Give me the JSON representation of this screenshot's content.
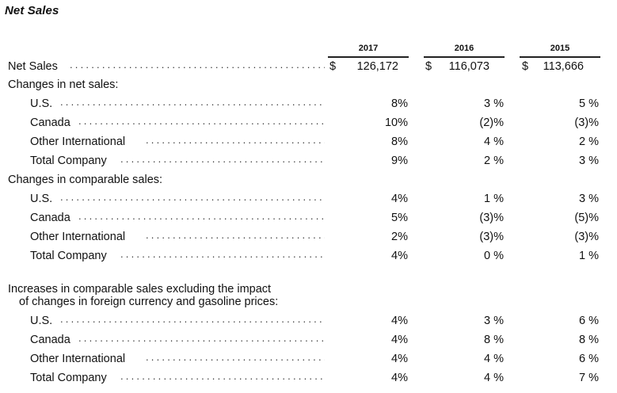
{
  "title": "Net Sales",
  "columns": [
    "2017",
    "2016",
    "2015"
  ],
  "net_sales": {
    "label": "Net Sales",
    "currency": "$",
    "values": [
      "126,172",
      "116,073",
      "113,666"
    ]
  },
  "sections": [
    {
      "heading": "Changes in net sales:",
      "rows": [
        {
          "label": "U.S.",
          "values": [
            "8%",
            "3 %",
            "5 %"
          ]
        },
        {
          "label": "Canada",
          "values": [
            "10%",
            "(2)%",
            "(3)%"
          ]
        },
        {
          "label": "Other International",
          "values": [
            "8%",
            "4 %",
            "2 %"
          ]
        },
        {
          "label": "Total Company",
          "values": [
            "9%",
            "2 %",
            "3 %"
          ]
        }
      ]
    },
    {
      "heading": "Changes in comparable sales:",
      "rows": [
        {
          "label": "U.S.",
          "values": [
            "4%",
            "1 %",
            "3 %"
          ]
        },
        {
          "label": "Canada",
          "values": [
            "5%",
            "(3)%",
            "(5)%"
          ]
        },
        {
          "label": "Other International",
          "values": [
            "2%",
            "(3)%",
            "(3)%"
          ]
        },
        {
          "label": "Total Company",
          "values": [
            "4%",
            "0 %",
            "1 %"
          ]
        }
      ]
    },
    {
      "heading_line1": "Increases in comparable sales excluding the impact",
      "heading_line2": "of changes in foreign currency and gasoline prices:",
      "rows": [
        {
          "label": "U.S.",
          "values": [
            "4%",
            "3 %",
            "6 %"
          ]
        },
        {
          "label": "Canada",
          "values": [
            "4%",
            "8 %",
            "8 %"
          ]
        },
        {
          "label": "Other International",
          "values": [
            "4%",
            "4 %",
            "6 %"
          ]
        },
        {
          "label": "Total Company",
          "values": [
            "4%",
            "4 %",
            "7 %"
          ]
        }
      ]
    }
  ]
}
